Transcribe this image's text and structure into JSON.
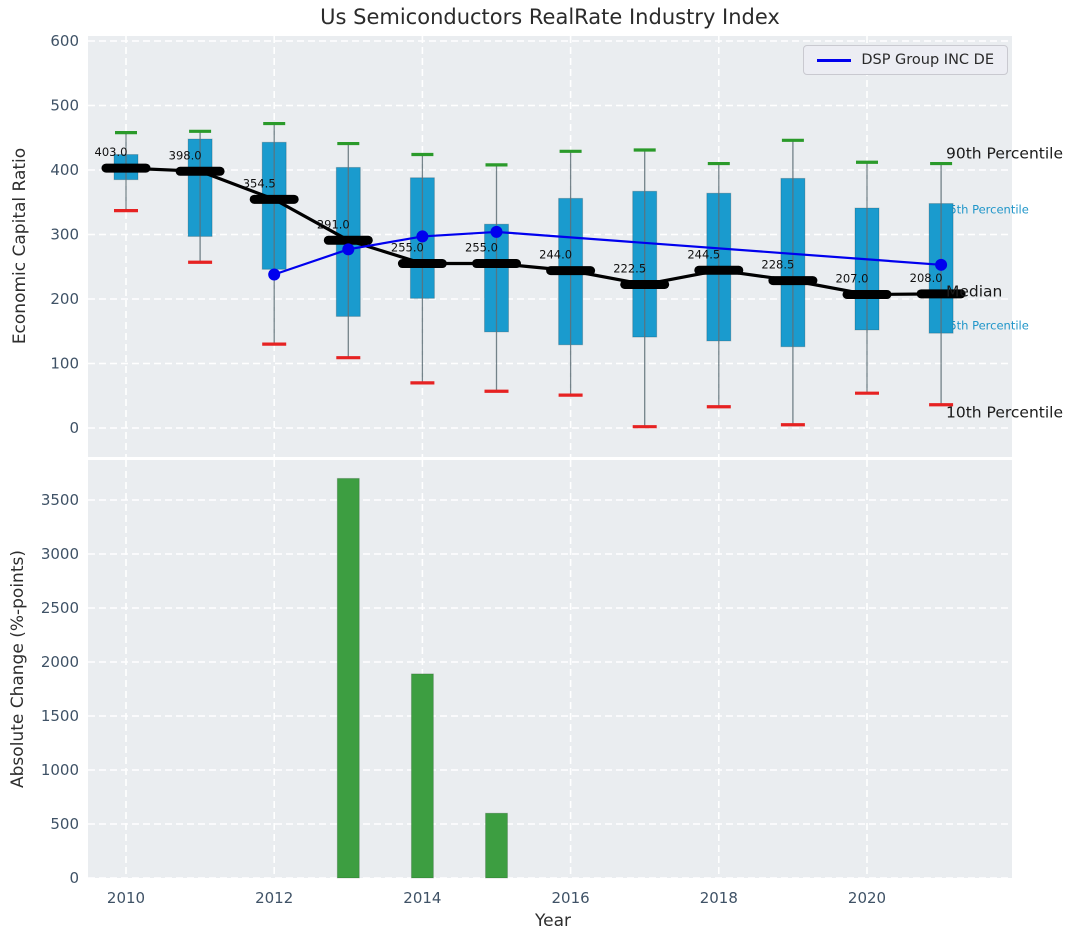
{
  "style_colors": {
    "plot_background": "#eaedf0",
    "grid_line": "#ffffff",
    "tick_text": "#3f5266",
    "title_text": "#2b2b2b",
    "box_fill": "#1a9bce",
    "whisker_line": "#5f7078",
    "cap_high_green": "#2a9a2a",
    "cap_low_red": "#e62222",
    "median_black": "#000000",
    "company_blue": "#0000ee",
    "bar_green": "#3d9e41",
    "percentile_blue_label": "#2196c9",
    "legend_bg": "#ecedf3",
    "legend_border": "#c9c9d0"
  },
  "chart_data": [
    {
      "type": "boxplot_percentiles_with_line",
      "title": "Us Semiconductors RealRate Industry Index",
      "ylabel": "Economic Capital Ratio",
      "ylim": [
        0,
        600
      ],
      "yticks": [
        0,
        100,
        200,
        300,
        400,
        500,
        600
      ],
      "years": [
        2010,
        2011,
        2012,
        2013,
        2014,
        2015,
        2016,
        2017,
        2018,
        2019,
        2020,
        2021
      ],
      "grid": true,
      "legend_position": "upper right",
      "percentiles": {
        "p90": [
          458,
          460,
          472,
          441,
          424,
          408,
          429,
          431,
          410,
          446,
          412,
          410
        ],
        "p75": [
          424,
          448,
          443,
          404,
          388,
          316,
          356,
          367,
          364,
          387,
          341,
          348
        ],
        "median": [
          403,
          398,
          354.5,
          291,
          255,
          255,
          244,
          222.5,
          244.5,
          228.5,
          207,
          208
        ],
        "p25": [
          385,
          297,
          246,
          173,
          201,
          149,
          129,
          141,
          135,
          126,
          152,
          147
        ],
        "p10": [
          337,
          257,
          130,
          109,
          70,
          57,
          51,
          2,
          33,
          5,
          54,
          36
        ]
      },
      "median_labels": [
        "403.0",
        "398.0",
        "354.5",
        "291.0",
        "255.0",
        "255.0",
        "244.0",
        "222.5",
        "244.5",
        "228.5",
        "207.0",
        "208.0"
      ],
      "company_line": {
        "name": "DSP Group INC DE",
        "x": [
          2012,
          2013,
          2014,
          2015,
          2021
        ],
        "y": [
          238,
          277,
          297,
          304,
          253
        ]
      },
      "right_axis_labels": [
        {
          "text": "90th Percentile",
          "emphasis": "large-black",
          "at_value": 425
        },
        {
          "text": "75th Percentile",
          "emphasis": "small-blue",
          "at_value": 338
        },
        {
          "text": "Median",
          "emphasis": "large-black",
          "at_value": 211
        },
        {
          "text": "25th Percentile",
          "emphasis": "small-blue",
          "at_value": 158
        },
        {
          "text": "10th Percentile",
          "emphasis": "large-black",
          "at_value": 23
        }
      ]
    },
    {
      "type": "bar",
      "xlabel": "Year",
      "ylabel": "Absolute Change (%-points)",
      "ylim": [
        0,
        3870
      ],
      "yticks": [
        0,
        500,
        1000,
        1500,
        2000,
        2500,
        3000,
        3500
      ],
      "xticks": [
        2010,
        2012,
        2014,
        2016,
        2018,
        2020
      ],
      "grid": true,
      "categories": [
        2013,
        2014,
        2015
      ],
      "values": [
        3700,
        1890,
        600
      ]
    }
  ]
}
